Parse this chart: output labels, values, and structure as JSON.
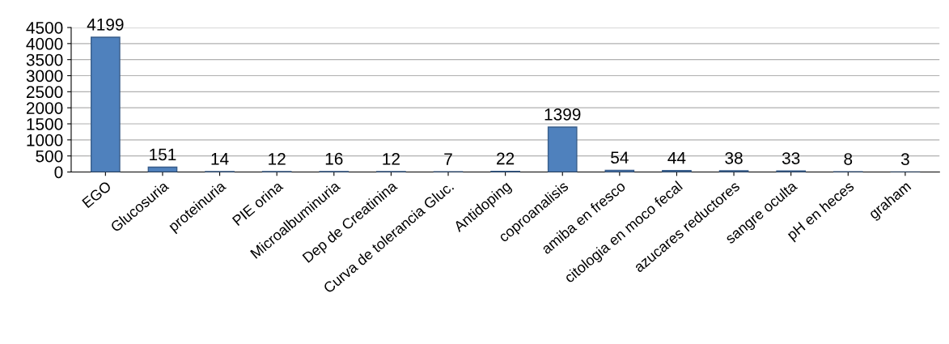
{
  "chart_data": {
    "type": "bar",
    "categories": [
      "EGO",
      "Glucosuria",
      "proteinuria",
      "PIE orina",
      "Microalbuminuria",
      "Dep de Creatinina",
      "Curva de tolerancia Gluc.",
      "Antidoping",
      "coproanalisis",
      "amiba en fresco",
      "citologia en moco fecal",
      "azucares reductores",
      "sangre oculta",
      "pH en heces",
      "graham"
    ],
    "values": [
      4199,
      151,
      14,
      12,
      16,
      12,
      7,
      22,
      1399,
      54,
      44,
      38,
      33,
      8,
      3
    ],
    "color": "#4f81bd",
    "ylim": [
      0,
      4500
    ],
    "yticks": [
      0,
      500,
      1000,
      1500,
      2000,
      2500,
      3000,
      3500,
      4000,
      4500
    ],
    "grid": "y",
    "data_labels": true
  }
}
